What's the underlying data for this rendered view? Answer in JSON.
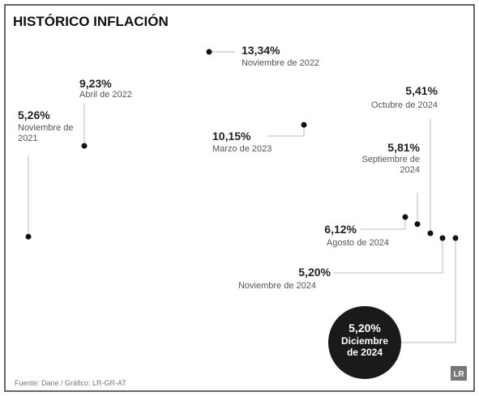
{
  "chart_data": {
    "type": "scatter",
    "title": "HISTÓRICO INFLACIÓN",
    "categories": [
      "Noviembre de 2021",
      "Abril de 2022",
      "Noviembre de 2022",
      "Marzo de 2023",
      "Agosto de 2024",
      "Septiembre de 2024",
      "Octubre de 2024",
      "Noviembre de 2024",
      "Diciembre de 2024"
    ],
    "values": [
      5.26,
      9.23,
      13.34,
      10.15,
      6.12,
      5.81,
      5.41,
      5.2,
      5.2
    ],
    "value_labels": [
      "5,26%",
      "9,23%",
      "13,34%",
      "10,15%",
      "6,12%",
      "5,81%",
      "5,41%",
      "5,20%",
      "5,20%"
    ],
    "color": "#111111",
    "source": "Fuente: Dane / Gráfico: LR-GR-AT",
    "logo": "LR"
  }
}
